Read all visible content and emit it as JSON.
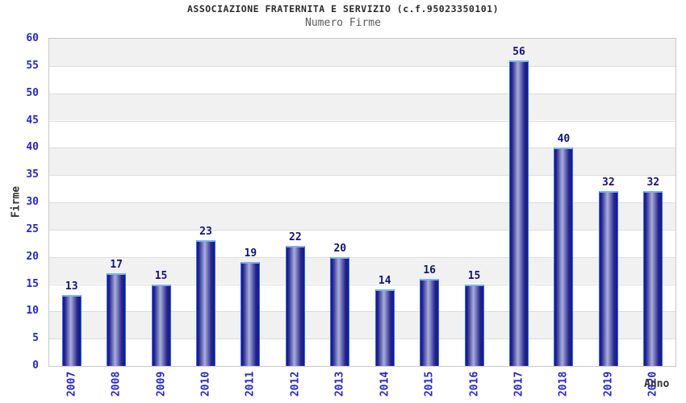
{
  "chart_data": {
    "type": "bar",
    "title": "ASSOCIAZIONE FRATERNITA E SERVIZIO (c.f.95023350101)",
    "subtitle": "Numero Firme",
    "xlabel": "Anno",
    "ylabel": "Firme",
    "categories": [
      "2007",
      "2008",
      "2009",
      "2010",
      "2011",
      "2012",
      "2013",
      "2014",
      "2015",
      "2016",
      "2017",
      "2018",
      "2019",
      "2020"
    ],
    "values": [
      13,
      17,
      15,
      23,
      19,
      22,
      20,
      14,
      16,
      15,
      56,
      40,
      32,
      32
    ],
    "ylim": [
      0,
      60
    ],
    "ytick_step": 5,
    "grid": "horizontal-bands",
    "legend": "none",
    "colors": {
      "title": "#2b2b2b",
      "subtitle": "#5a5a5a",
      "axis_titles": "#333333",
      "tick_labels": "#2626cf",
      "value_labels": "#13137a",
      "bar_dark": "#191986",
      "bar_mid": "#23238e",
      "bar_light": "#a9aed9",
      "bar_border": "#2e6df5",
      "bar_top_highlight": "#7db4ef",
      "band_gray": "#f1f1f1",
      "gridline": "#dcdcdc",
      "plot_border": "#c8c8c8",
      "background": "#ffffff"
    }
  }
}
